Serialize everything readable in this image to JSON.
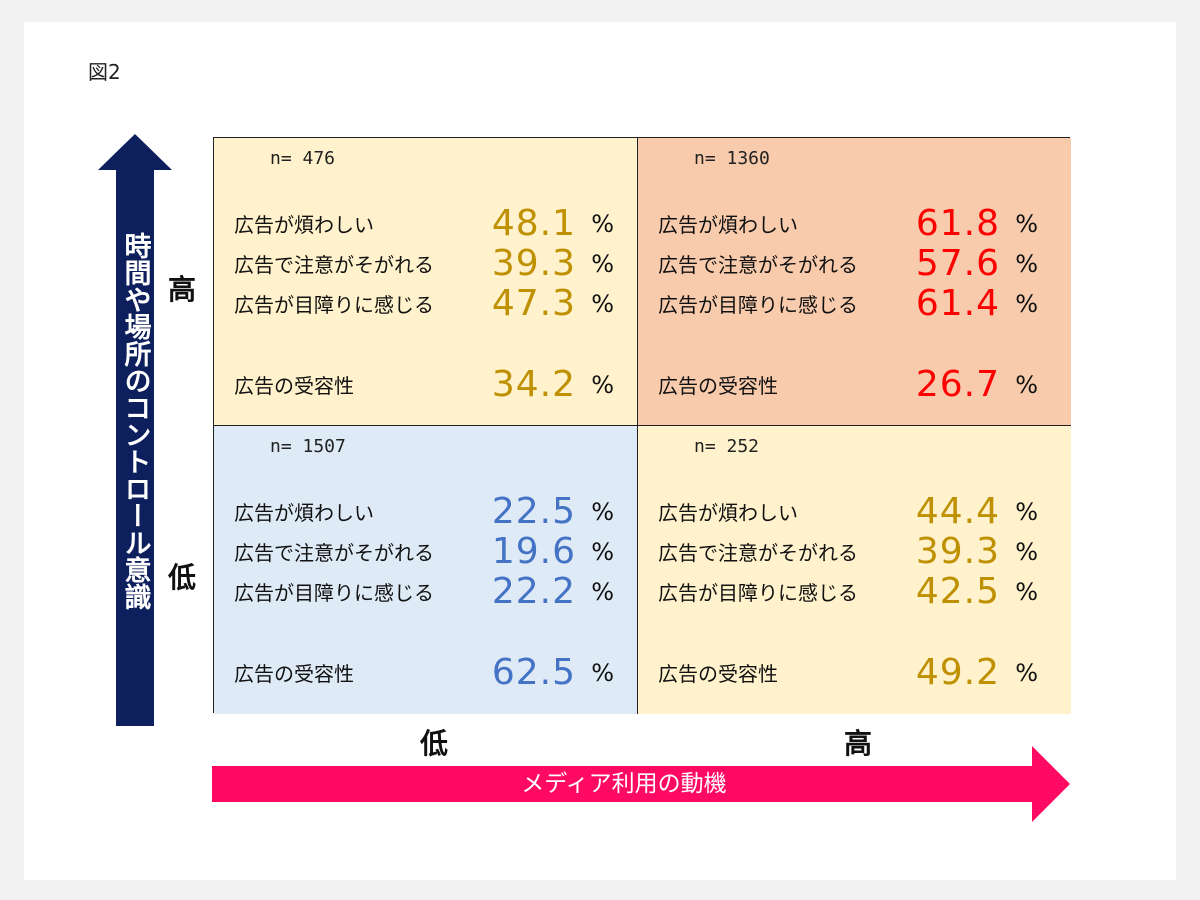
{
  "figure_label": "図2",
  "y_axis": {
    "label": "時間や場所のコントロール意識",
    "high": "高",
    "low": "低"
  },
  "x_axis": {
    "label": "メディア利用の動機",
    "low": "低",
    "high": "高"
  },
  "percent_sign": "%",
  "row_labels": {
    "annoying": "広告が煩わしい",
    "distracting": "広告で注意がそがれる",
    "obstructive": "広告が目障りに感じる",
    "acceptance": "広告の受容性"
  },
  "cells": {
    "top_left": {
      "n": "n= 476",
      "annoying": "48.1",
      "distracting": "39.3",
      "obstructive": "47.3",
      "acceptance": "34.2",
      "color": "#bf9000",
      "bg": "#fff2cc"
    },
    "top_right": {
      "n": "n= 1360",
      "annoying": "61.8",
      "distracting": "57.6",
      "obstructive": "61.4",
      "acceptance": "26.7",
      "color": "#ff0000",
      "bg": "#f8cbad"
    },
    "bottom_left": {
      "n": "n= 1507",
      "annoying": "22.5",
      "distracting": "19.6",
      "obstructive": "22.2",
      "acceptance": "62.5",
      "color": "#4472c4",
      "bg": "#deebf7"
    },
    "bottom_right": {
      "n": "n= 252",
      "annoying": "44.4",
      "distracting": "39.3",
      "obstructive": "42.5",
      "acceptance": "49.2",
      "color": "#bf9000",
      "bg": "#fff2cc"
    }
  }
}
